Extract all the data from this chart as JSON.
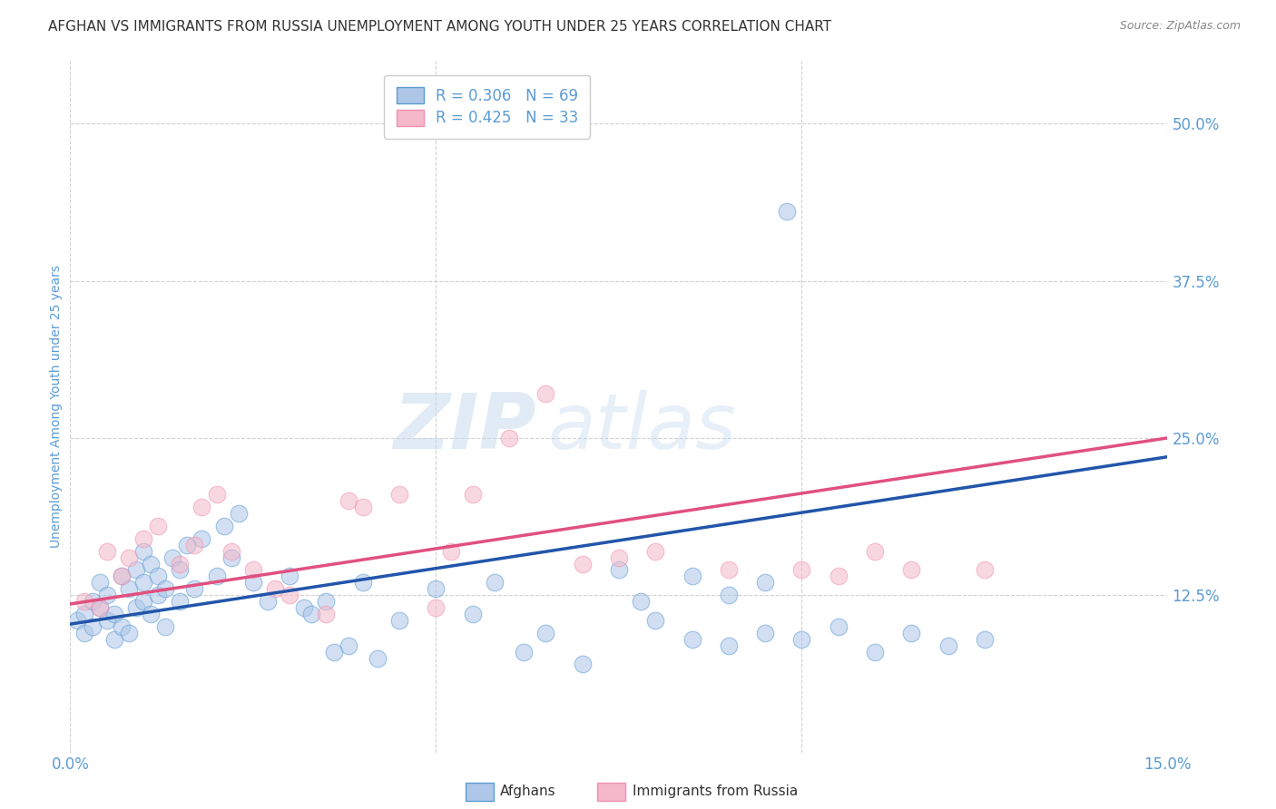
{
  "title": "AFGHAN VS IMMIGRANTS FROM RUSSIA UNEMPLOYMENT AMONG YOUTH UNDER 25 YEARS CORRELATION CHART",
  "source": "Source: ZipAtlas.com",
  "ylabel": "Unemployment Among Youth under 25 years",
  "xlim": [
    0.0,
    15.0
  ],
  "ylim": [
    0.0,
    55.0
  ],
  "yticks": [
    12.5,
    25.0,
    37.5,
    50.0
  ],
  "ytick_labels": [
    "12.5%",
    "25.0%",
    "37.5%",
    "50.0%"
  ],
  "xticks": [
    0.0,
    5.0,
    10.0,
    15.0
  ],
  "xtick_labels": [
    "0.0%",
    "",
    "",
    "15.0%"
  ],
  "background_color": "#ffffff",
  "grid_color": "#cccccc",
  "watermark_zip": "ZIP",
  "watermark_atlas": "atlas",
  "blue_scatter": {
    "x": [
      0.1,
      0.2,
      0.2,
      0.3,
      0.3,
      0.4,
      0.4,
      0.5,
      0.5,
      0.6,
      0.6,
      0.7,
      0.7,
      0.8,
      0.8,
      0.9,
      0.9,
      1.0,
      1.0,
      1.0,
      1.1,
      1.1,
      1.2,
      1.2,
      1.3,
      1.3,
      1.4,
      1.5,
      1.5,
      1.6,
      1.7,
      1.8,
      2.0,
      2.1,
      2.2,
      2.3,
      2.5,
      2.7,
      3.0,
      3.2,
      3.5,
      3.8,
      4.0,
      4.5,
      5.0,
      5.5,
      6.5,
      7.0,
      7.5,
      8.0,
      8.5,
      8.5,
      9.0,
      9.0,
      9.5,
      9.5,
      10.0,
      10.5,
      11.0,
      11.5,
      12.0,
      12.5,
      3.3,
      3.6,
      4.2,
      5.8,
      6.2,
      7.8,
      9.8
    ],
    "y": [
      10.5,
      11.0,
      9.5,
      10.0,
      12.0,
      11.5,
      13.5,
      10.5,
      12.5,
      9.0,
      11.0,
      10.0,
      14.0,
      13.0,
      9.5,
      11.5,
      14.5,
      12.0,
      13.5,
      16.0,
      11.0,
      15.0,
      12.5,
      14.0,
      10.0,
      13.0,
      15.5,
      12.0,
      14.5,
      16.5,
      13.0,
      17.0,
      14.0,
      18.0,
      15.5,
      19.0,
      13.5,
      12.0,
      14.0,
      11.5,
      12.0,
      8.5,
      13.5,
      10.5,
      13.0,
      11.0,
      9.5,
      7.0,
      14.5,
      10.5,
      9.0,
      14.0,
      8.5,
      12.5,
      9.5,
      13.5,
      9.0,
      10.0,
      8.0,
      9.5,
      8.5,
      9.0,
      11.0,
      8.0,
      7.5,
      13.5,
      8.0,
      12.0,
      43.0
    ]
  },
  "pink_scatter": {
    "x": [
      0.2,
      0.4,
      0.5,
      0.7,
      0.8,
      1.0,
      1.2,
      1.5,
      1.7,
      1.8,
      2.0,
      2.2,
      2.5,
      2.8,
      3.0,
      3.5,
      3.8,
      4.0,
      4.5,
      5.0,
      5.2,
      5.5,
      6.0,
      6.5,
      7.0,
      7.5,
      8.0,
      9.0,
      10.0,
      10.5,
      11.0,
      11.5,
      12.5
    ],
    "y": [
      12.0,
      11.5,
      16.0,
      14.0,
      15.5,
      17.0,
      18.0,
      15.0,
      16.5,
      19.5,
      20.5,
      16.0,
      14.5,
      13.0,
      12.5,
      11.0,
      20.0,
      19.5,
      20.5,
      11.5,
      16.0,
      20.5,
      25.0,
      28.5,
      15.0,
      15.5,
      16.0,
      14.5,
      14.5,
      14.0,
      16.0,
      14.5,
      14.5
    ]
  },
  "blue_line": {
    "x0": 0.0,
    "x1": 15.0,
    "y0": 10.2,
    "y1": 23.5
  },
  "pink_line": {
    "x0": 0.0,
    "x1": 15.0,
    "y0": 11.8,
    "y1": 25.0
  },
  "title_color": "#333333",
  "title_fontsize": 11,
  "axis_label_color": "#5b9bd5",
  "tick_label_color": "#5b9bd5",
  "legend_text_color": "#5b9bd5",
  "blue_color": "#5b9bd5",
  "pink_color": "#f48fb1",
  "blue_scatter_color": "#aec6e8",
  "pink_scatter_color": "#f4b8c8",
  "line_blue": "#2255aa",
  "line_pink": "#e05080",
  "legend_label_blue": "R = 0.306   N = 69",
  "legend_label_pink": "R = 0.425   N = 33",
  "bottom_label_afghans": "Afghans",
  "bottom_label_russia": "Immigrants from Russia"
}
